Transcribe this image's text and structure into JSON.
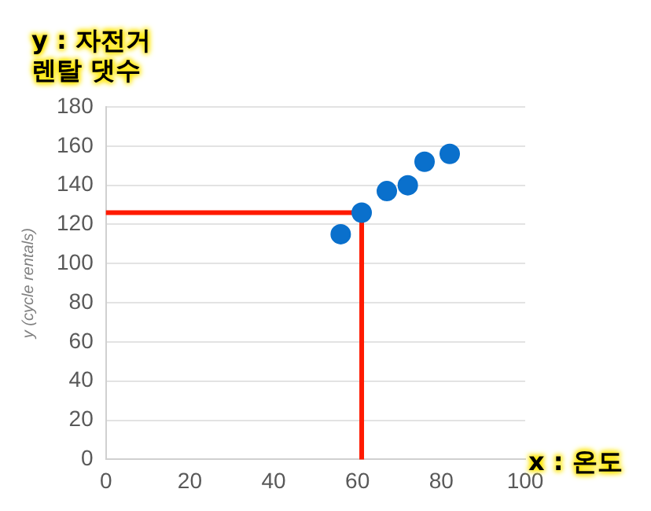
{
  "chart_data": {
    "type": "scatter",
    "ylabel": "y (cycle rentals)",
    "annotations": [
      "y : 자전거\n렌탈 댓수",
      "x : 온도"
    ],
    "x": [
      56,
      61,
      67,
      72,
      76,
      82
    ],
    "series": [
      {
        "color": "#0a70cc",
        "values": [
          115,
          126,
          137,
          140,
          152,
          156
        ]
      }
    ],
    "ref_lines": [
      {
        "axis": "y",
        "value": 126,
        "color": "#ff1a00",
        "line_style": "solid"
      },
      {
        "axis": "x",
        "value": 61,
        "color": "#ff1a00",
        "line_style": "solid"
      }
    ],
    "marker": "circle",
    "xlim": [
      0,
      100
    ],
    "xticks": [
      0,
      20,
      40,
      60,
      80,
      100
    ],
    "ylim": [
      0,
      180
    ],
    "yticks": [
      0,
      20,
      40,
      60,
      80,
      100,
      120,
      140,
      160,
      180
    ],
    "grid": "y",
    "legend": false
  }
}
